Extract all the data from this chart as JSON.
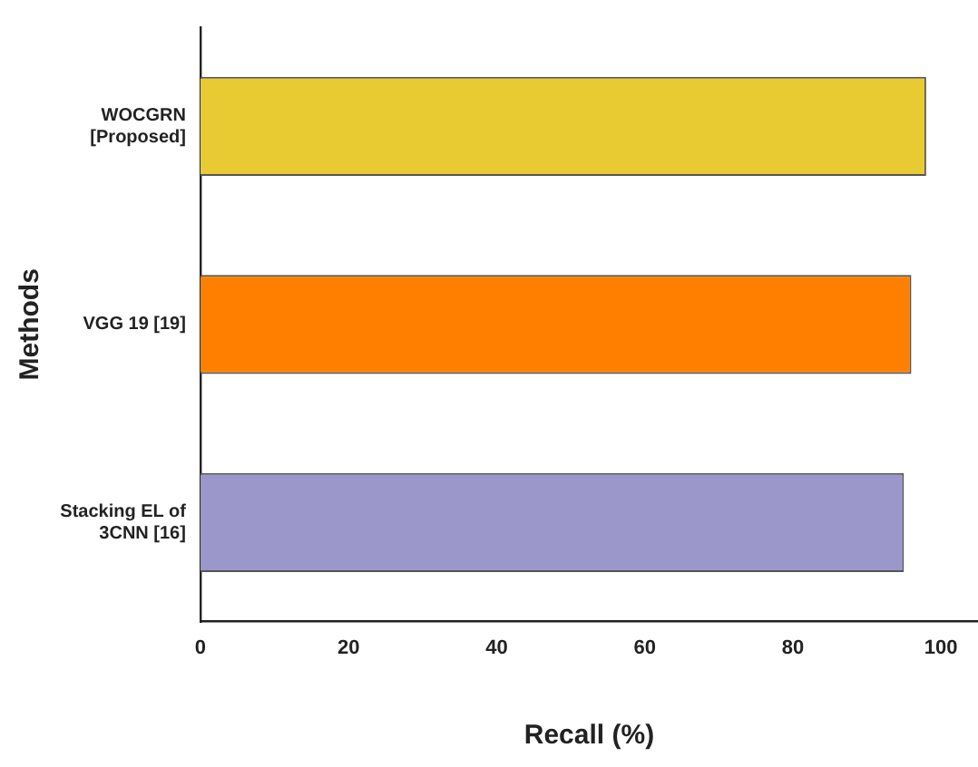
{
  "chart_data": {
    "type": "bar",
    "orientation": "horizontal",
    "xlabel": "Recall (%)",
    "ylabel": "Methods",
    "categories": [
      "WOCGRN\n[Proposed]",
      "VGG 19 [19]",
      "Stacking EL of\n3CNN [16]"
    ],
    "values": [
      98,
      96,
      95
    ],
    "colors": [
      "#e8cb33",
      "#ff8000",
      "#9b97cb"
    ],
    "xlim": [
      0,
      105
    ],
    "xticks": [
      0,
      20,
      40,
      60,
      80,
      100
    ],
    "grid": false,
    "legend": false
  }
}
